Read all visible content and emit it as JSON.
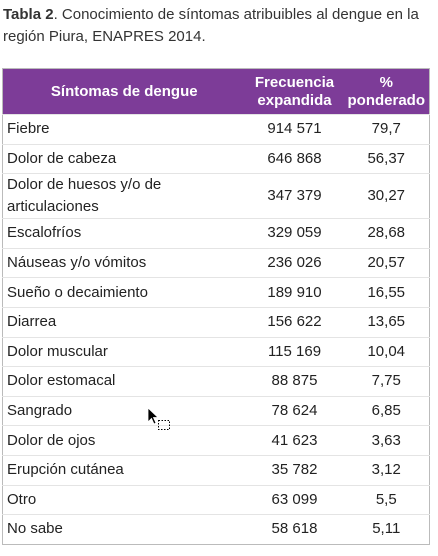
{
  "title": {
    "label": "Tabla 2",
    "text": ". Conocimiento de síntomas atribuibles al dengue en la región Piura, ENAPRES 2014."
  },
  "table": {
    "header": [
      "Síntomas de dengue",
      "Frecuencia expandida",
      "% ponderado"
    ],
    "rows": [
      [
        "Fiebre",
        "914 571",
        "79,7"
      ],
      [
        "Dolor de cabeza",
        "646 868",
        "56,37"
      ],
      [
        "Dolor de huesos y/o de articulaciones",
        "347 379",
        "30,27"
      ],
      [
        "Escalofríos",
        "329 059",
        "28,68"
      ],
      [
        "Náuseas y/o vómitos",
        "236 026",
        "20,57"
      ],
      [
        "Sueño o decaimiento",
        "189 910",
        "16,55"
      ],
      [
        "Diarrea",
        "156 622",
        "13,65"
      ],
      [
        "Dolor muscular",
        "115 169",
        "10,04"
      ],
      [
        "Dolor estomacal",
        "88 875",
        "7,75"
      ],
      [
        "Sangrado",
        "78 624",
        "6,85"
      ],
      [
        "Dolor de ojos",
        "41 623",
        "3,63"
      ],
      [
        "Erupción cutánea",
        "35 782",
        "3,12"
      ],
      [
        "Otro",
        "63 099",
        "5,5"
      ],
      [
        "No sabe",
        "58 618",
        "5,11"
      ]
    ]
  }
}
